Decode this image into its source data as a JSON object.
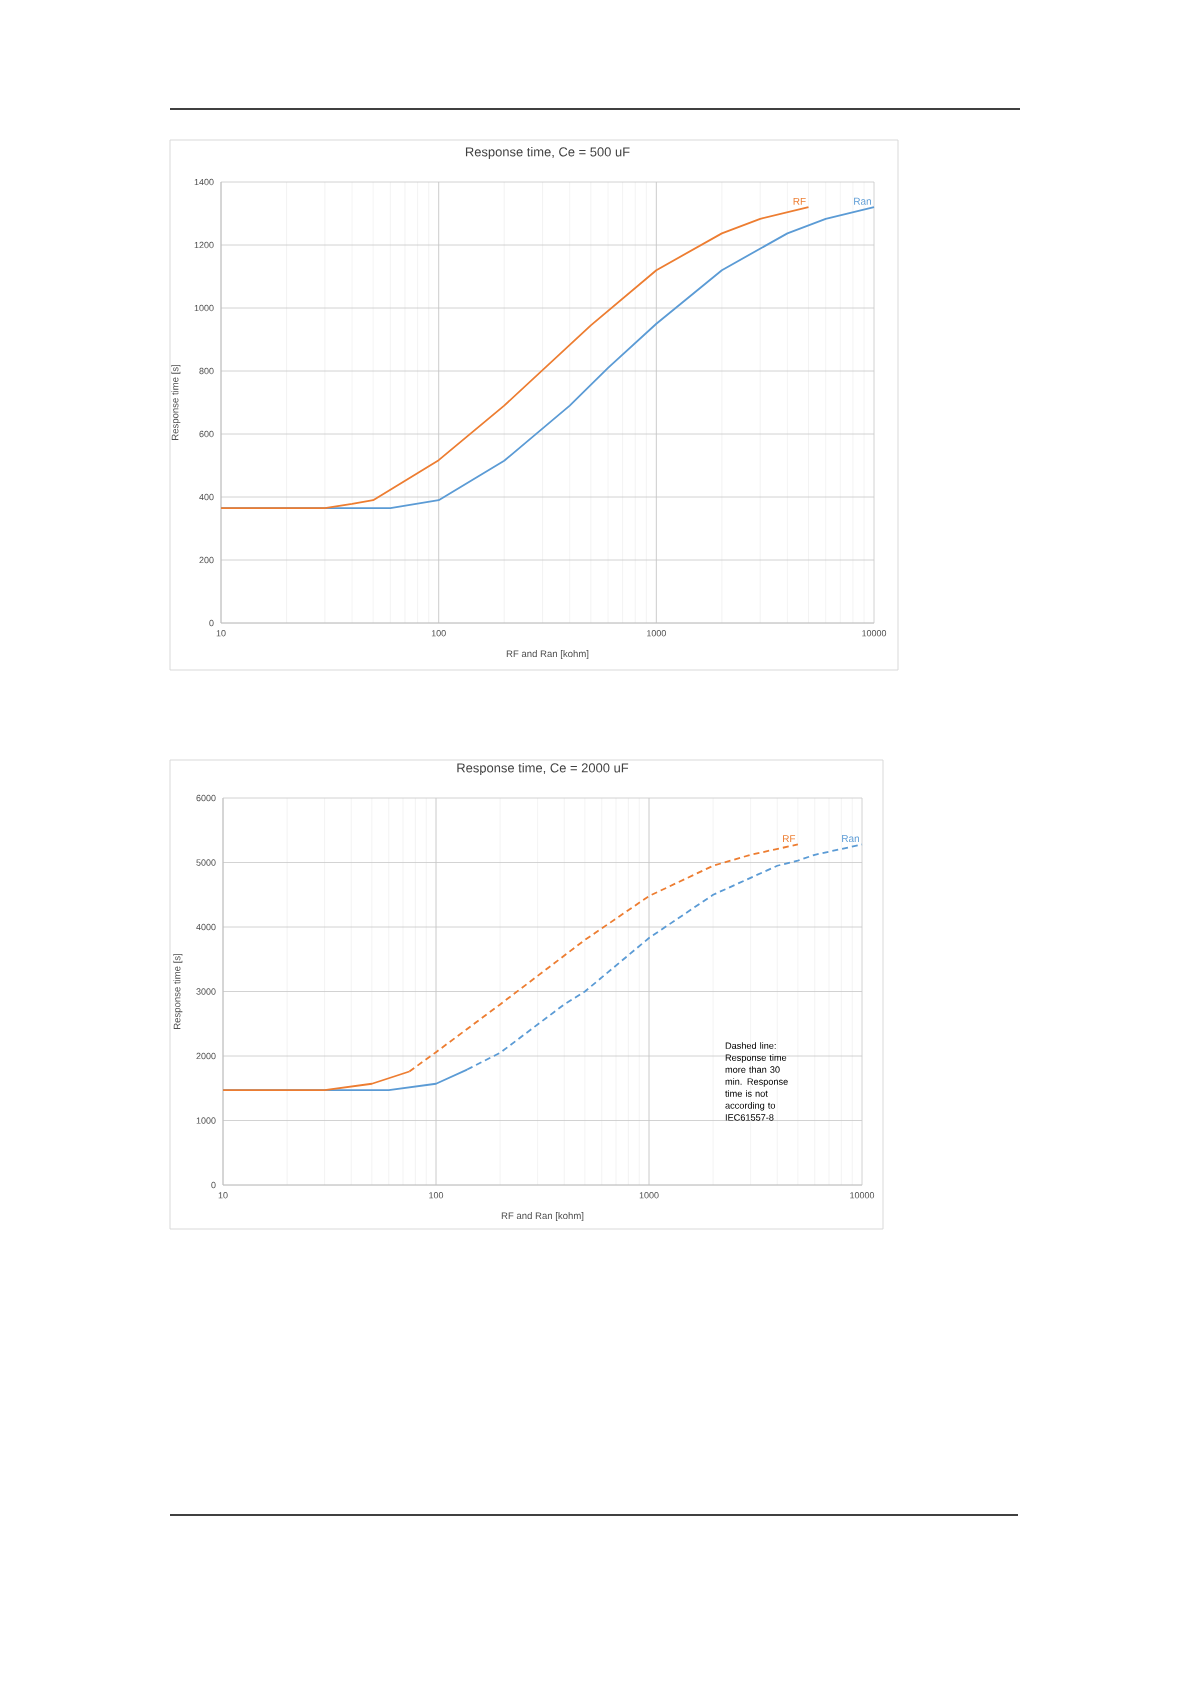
{
  "chart_data": [
    {
      "type": "line",
      "title": "Response time, Ce = 500 uF",
      "xlabel": "RF and Ran [kohm]",
      "ylabel": "Response time [s]",
      "log": "x",
      "grid": true,
      "xlim": [
        10,
        10000
      ],
      "ylim": [
        0,
        1400
      ],
      "xticks": [
        10,
        100,
        1000,
        10000
      ],
      "yticks": [
        0,
        200,
        400,
        600,
        800,
        1000,
        1200,
        1400
      ],
      "series": [
        {
          "name": "RF",
          "color": "#ed7d31",
          "x": [
            10,
            20,
            30,
            40,
            50,
            100,
            200,
            500,
            1000,
            2000,
            3000,
            5000
          ],
          "values": [
            365,
            365,
            365,
            378,
            390,
            517,
            690,
            945,
            1120,
            1237,
            1283,
            1320
          ]
        },
        {
          "name": "Ran",
          "color": "#5b9bd5",
          "x": [
            10,
            60,
            100,
            200,
            400,
            600,
            1000,
            2000,
            4000,
            6000,
            10000
          ],
          "values": [
            365,
            365,
            390,
            515,
            690,
            810,
            950,
            1120,
            1237,
            1283,
            1320
          ]
        }
      ]
    },
    {
      "type": "line",
      "title": "Response time, Ce = 2000 uF",
      "xlabel": "RF and Ran [kohm]",
      "ylabel": "Response time [s]",
      "log": "x",
      "grid": true,
      "xlim": [
        10,
        10000
      ],
      "ylim": [
        0,
        6000
      ],
      "xticks": [
        10,
        100,
        1000,
        10000
      ],
      "yticks": [
        0,
        1000,
        2000,
        3000,
        4000,
        5000,
        6000
      ],
      "annotations": [
        "Dashed line: Response time more than 30 min. Response time is not according to IEC61557-8"
      ],
      "series": [
        {
          "color": "#ed7d31",
          "x": [
            10,
            30,
            50,
            75
          ],
          "values": [
            1470,
            1470,
            1570,
            1760
          ]
        },
        {
          "name": "RF",
          "color": "#ed7d31",
          "line_style": "dashed",
          "x": [
            75,
            100,
            200,
            500,
            1000,
            2000,
            3000,
            5000
          ],
          "values": [
            1760,
            2060,
            2800,
            3800,
            4480,
            4950,
            5120,
            5280
          ]
        },
        {
          "color": "#5b9bd5",
          "x": [
            10,
            60,
            100,
            140
          ],
          "values": [
            1470,
            1470,
            1570,
            1790
          ]
        },
        {
          "name": "Ran",
          "color": "#5b9bd5",
          "line_style": "dashed",
          "x": [
            140,
            200,
            400,
            500,
            1000,
            2000,
            4000,
            5000,
            6000,
            10000
          ],
          "values": [
            1790,
            2050,
            2800,
            3000,
            3830,
            4500,
            4950,
            5030,
            5120,
            5280
          ]
        }
      ]
    }
  ]
}
